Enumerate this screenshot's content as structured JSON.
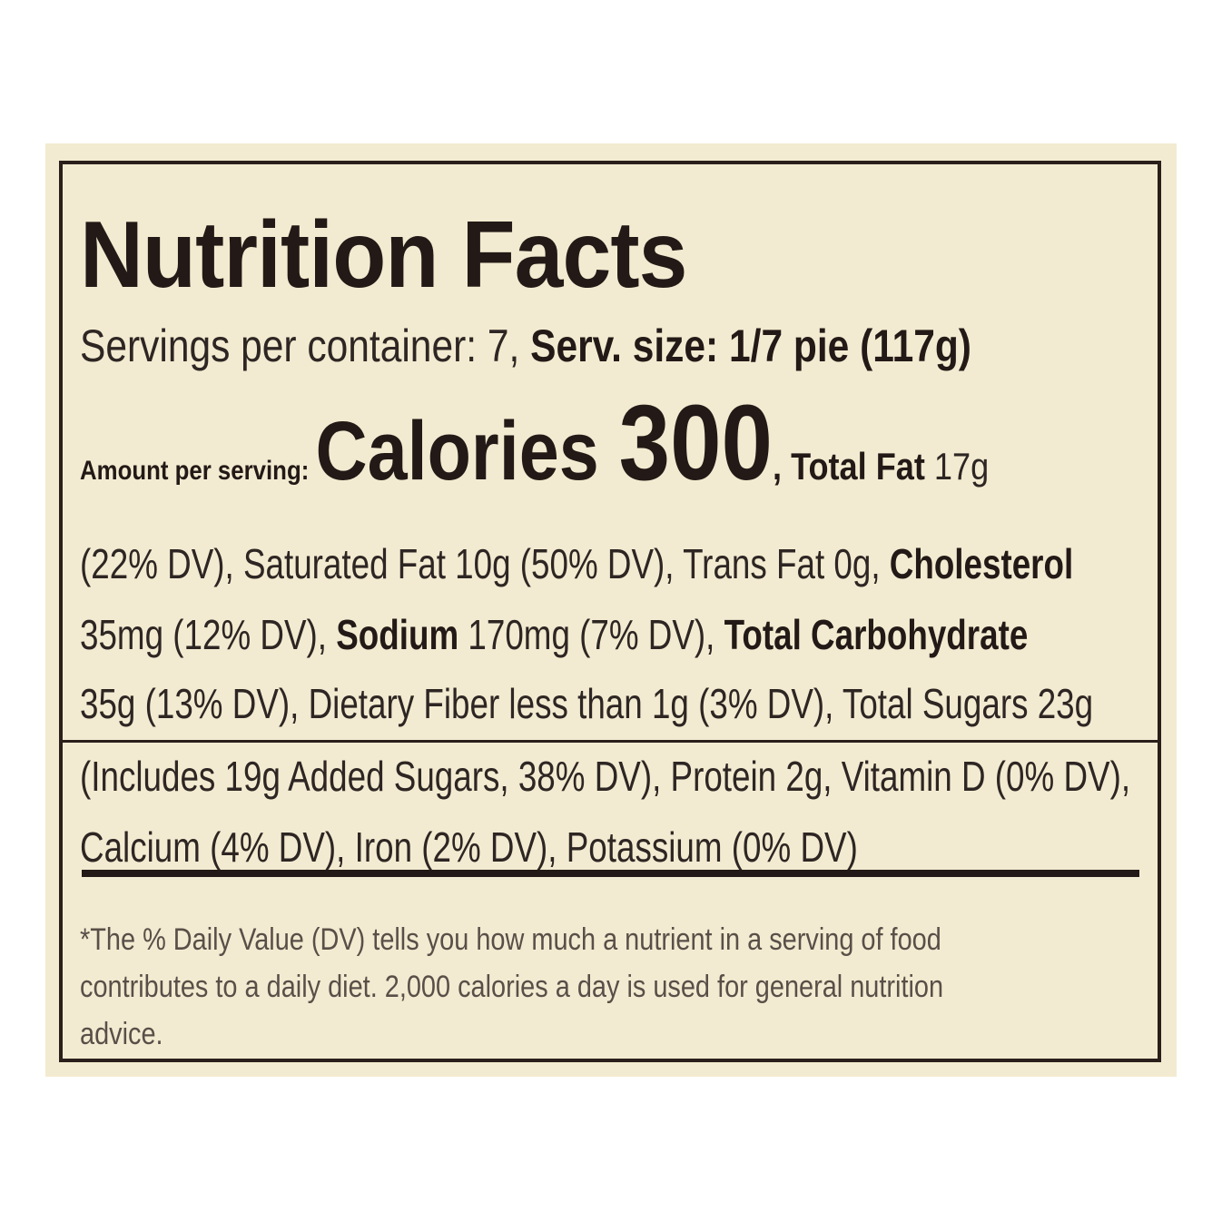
{
  "label": {
    "title": "Nutrition Facts",
    "servings_text": "Servings per container: 7, ",
    "serving_size": "Serv. size: 1/7 pie (117g)",
    "amount_per_serving": "Amount per serving: ",
    "calories_label": "Calories ",
    "calories_value": "300",
    "total_fat_label": ", Total Fat ",
    "total_fat_value": "17g",
    "line1": "(22% DV), Saturated Fat 10g (50% DV), Trans Fat 0g, ",
    "cholesterol_label": "Cholesterol",
    "line2_a": "35mg (12% DV), ",
    "sodium_label": "Sodium",
    "line2_b": " 170mg (7% DV), ",
    "carb_label": "Total Carbohydrate",
    "line3": "35g (13% DV), Dietary Fiber less than 1g (3% DV), Total Sugars 23g",
    "line4": "(Includes 19g Added Sugars, 38% DV), Protein 2g, Vitamin D (0% DV),",
    "line5": "Calcium (4% DV), Iron (2% DV), Potassium (0% DV)",
    "footnote": [
      "*The % Daily Value (DV) tells you how much a nutrient in a serving of food",
      "contributes to a daily diet. 2,000 calories a day is used for general nutrition",
      "advice."
    ]
  },
  "colors": {
    "background": "#f3ebd1",
    "ink": "#231a17"
  }
}
